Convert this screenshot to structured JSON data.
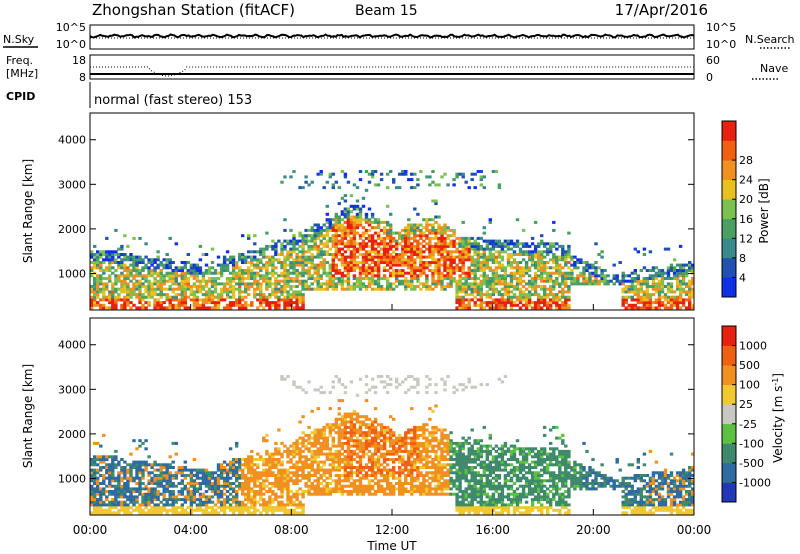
{
  "header": {
    "station": "Zhongshan Station (fitACF)",
    "beam": "Beam 15",
    "date": "17/Apr/2016"
  },
  "noise_panel": {
    "left_label": "N.Sky",
    "right_label": "N.Search",
    "left_ticks": [
      "10^5",
      "10^0"
    ],
    "right_ticks": [
      "10^5",
      "10^0"
    ]
  },
  "freq_panel": {
    "left_label_1": "Freq.",
    "left_label_2": "[MHz]",
    "right_label": "Nave",
    "left_ticks": [
      "18",
      "8"
    ],
    "right_ticks": [
      "60",
      "0"
    ]
  },
  "cpid": {
    "label": "CPID",
    "mode": "normal (fast stereo) 153"
  },
  "chart_data": [
    {
      "type": "heatmap",
      "quantity": "power",
      "xlabel": "Time UT",
      "ylabel": "Slant Range [km]",
      "xlim": [
        0,
        24
      ],
      "ylim": [
        180,
        4600
      ],
      "x_ticks": [
        "00:00",
        "04:00",
        "08:00",
        "12:00",
        "16:00",
        "20:00",
        "00:00"
      ],
      "y_ticks": [
        1000,
        2000,
        3000,
        4000
      ],
      "colorbar": {
        "label": "Power [dB]",
        "ticks": [
          4,
          8,
          12,
          16,
          20,
          24,
          28
        ],
        "colors": [
          "#1030e8",
          "#2050b0",
          "#3a8a8a",
          "#4aa060",
          "#7cc050",
          "#e8c020",
          "#f09020",
          "#f06010",
          "#e82010"
        ]
      }
    },
    {
      "type": "heatmap",
      "quantity": "velocity",
      "xlabel": "Time UT",
      "ylabel": "Slant Range [km]",
      "xlim": [
        0,
        24
      ],
      "ylim": [
        180,
        4600
      ],
      "x_ticks": [
        "00:00",
        "04:00",
        "08:00",
        "12:00",
        "16:00",
        "20:00",
        "00:00"
      ],
      "y_ticks": [
        1000,
        2000,
        3000,
        4000
      ],
      "colorbar": {
        "label": "Velocity [m s",
        "label_sup": "-1",
        "ticks": [
          "1000",
          "500",
          "100",
          "25",
          "-25",
          "-100",
          "-500",
          "-1000"
        ],
        "colors": [
          "#2038b8",
          "#2f6aa0",
          "#3e8a6a",
          "#5cc040",
          "#c8c8c0",
          "#f0c830",
          "#f09020",
          "#f06010",
          "#e82010"
        ]
      }
    }
  ],
  "colors": {
    "background": "#ffffff",
    "axis": "#000000"
  }
}
